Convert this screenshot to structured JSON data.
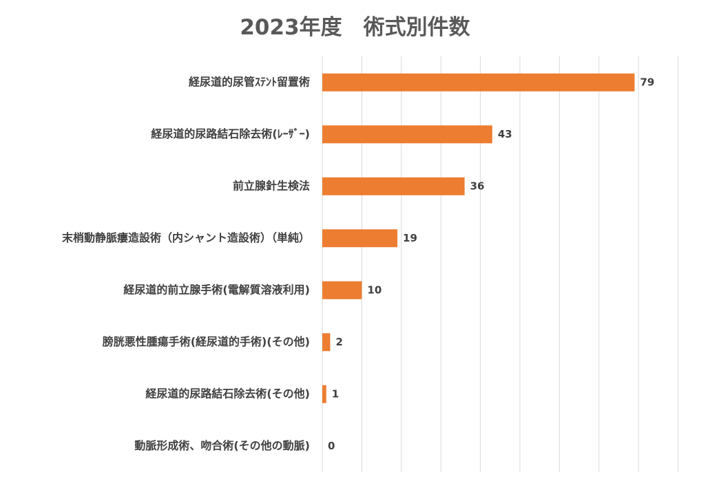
{
  "chart_data": {
    "type": "bar",
    "orientation": "horizontal",
    "title": "2023年度　術式別件数",
    "categories": [
      "経尿道的尿管ｽﾃﾝﾄ留置術",
      "経尿道的尿路結石除去術(ﾚｰｻﾞｰ)",
      "前立腺針生検法",
      "末梢動静脈瘻造設術（内シャント造設術）（単純）",
      "経尿道的前立腺手術(電解質溶液利用)",
      "膀胱悪性腫瘍手術(経尿道的手術)(その他)",
      "経尿道的尿路結石除去術(その他)",
      "動脈形成術、吻合術(その他の動脈)"
    ],
    "values": [
      79,
      43,
      36,
      19,
      10,
      2,
      1,
      0
    ],
    "xlim": [
      0,
      92
    ],
    "grid": true,
    "legend": "none",
    "bar_color": "#ED7D31"
  }
}
